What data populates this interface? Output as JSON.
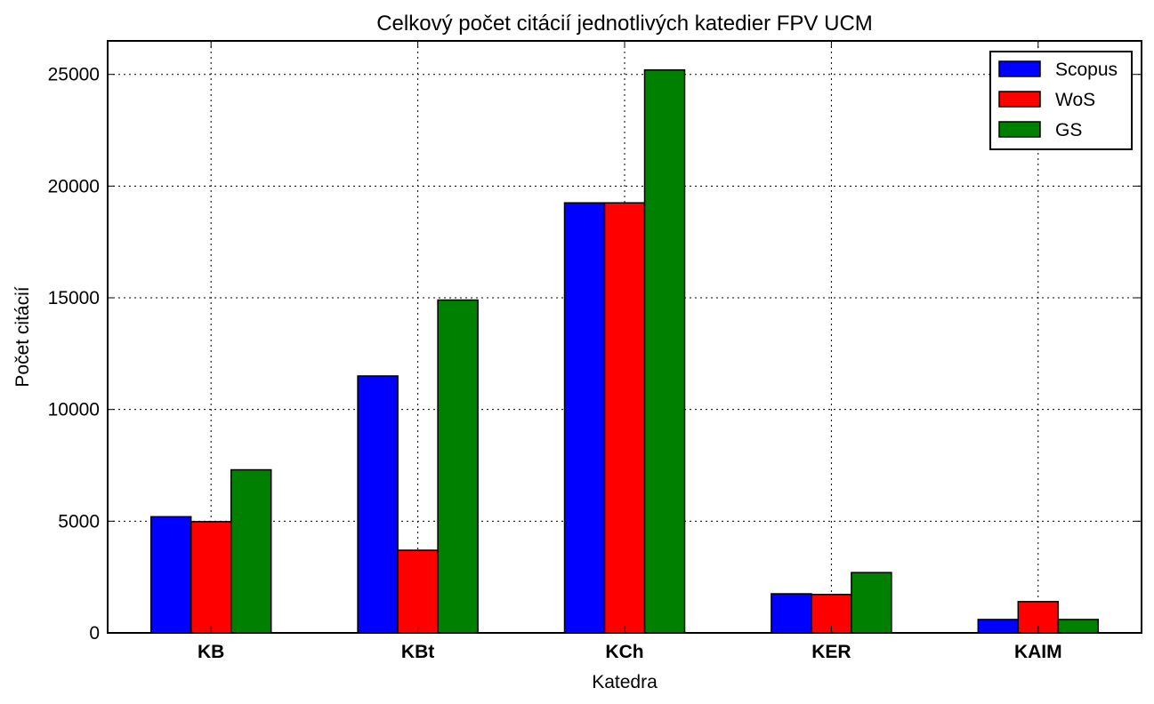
{
  "chart_data": {
    "type": "bar",
    "title": "Celkový počet citácií jednotlivých katedier FPV UCM",
    "xlabel": "Katedra",
    "ylabel": "Počet citácií",
    "categories": [
      "KB",
      "KBt",
      "KCh",
      "KER",
      "KAIM"
    ],
    "series": [
      {
        "name": "Scopus",
        "color": "#0000ff",
        "values": [
          5200,
          11500,
          19250,
          1750,
          600
        ]
      },
      {
        "name": "WoS",
        "color": "#ff0000",
        "values": [
          4980,
          3700,
          19250,
          1720,
          1400
        ]
      },
      {
        "name": "GS",
        "color": "#008000",
        "values": [
          7300,
          14900,
          25200,
          2700,
          600
        ]
      }
    ],
    "ylim": [
      0,
      26500
    ],
    "yticks": [
      0,
      5000,
      10000,
      15000,
      20000,
      25000
    ],
    "grid": true,
    "legend_position": "top-right"
  }
}
